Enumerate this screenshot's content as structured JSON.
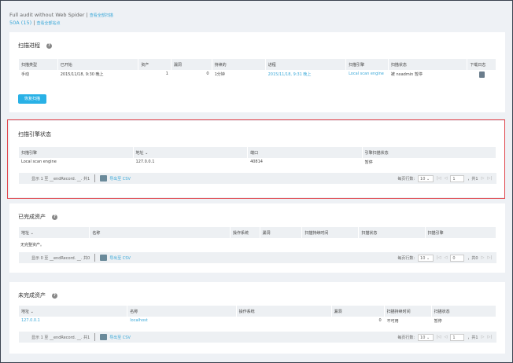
{
  "header": {
    "title": "Full audit without Web Spider",
    "view_all_scans": "查看全部扫描",
    "site": "50A (15)",
    "view_all_sites": "查看全部站点"
  },
  "colors": {
    "accent": "#29b1e6",
    "highlight": "#e0434a"
  },
  "progress": {
    "title": "扫描进程",
    "columns": [
      "扫描类型",
      "已开始",
      "资产",
      "漏洞",
      "持续的",
      "进程",
      "扫描引擎",
      "扫描状态",
      "下载日志"
    ],
    "rows": [
      [
        "手动",
        "2015/11/18, 9:30 晚上",
        "1",
        "0",
        "1分钟",
        "2015/11/18, 9:31 晚上",
        "Local scan engine",
        "被 nxadmin 暂停",
        "download-log-icon"
      ]
    ],
    "resume_button": "恢复扫描"
  },
  "engine": {
    "title": "扫描引擎状态",
    "columns": [
      "扫描引擎",
      "地址 ⌄",
      "端口",
      "引擎扫描状态"
    ],
    "rows": [
      [
        "Local scan engine",
        "127.0.0.1",
        "40814",
        "暂停"
      ]
    ],
    "footer": {
      "showing": "显示 1 至 __endRecord. __. 共1",
      "export": "导出至 CSV",
      "rows_per_page_label": "每页行数:",
      "rows_per_page": "10",
      "page": "1",
      "total_pages": "，共1"
    }
  },
  "completed": {
    "title": "已完成资产",
    "columns": [
      "地址 ⌄",
      "名称",
      "操作系统",
      "漏洞",
      "扫描持续时间",
      "扫描状态",
      "扫描引擎"
    ],
    "empty": "无完整资产。",
    "footer": {
      "showing": "显示 0 至 __endRecord. __. 共0",
      "export": "导出至 CSV",
      "rows_per_page_label": "每页行数:",
      "rows_per_page": "10",
      "page": "0",
      "total_pages": "，共0"
    }
  },
  "incomplete": {
    "title": "未完成资产",
    "columns": [
      "地址 ⌄",
      "名称",
      "操作系统",
      "漏洞",
      "扫描持续时间",
      "扫描状态"
    ],
    "rows": [
      [
        "127.0.0.1",
        "localhost",
        "",
        "0",
        "不可用",
        "暂停"
      ]
    ],
    "footer": {
      "showing": "显示 1 至 __endRecord. __. 共1",
      "export": "导出至 CSV",
      "rows_per_page_label": "每页行数:",
      "rows_per_page": "10",
      "page": "1",
      "total_pages": "，共1"
    }
  }
}
